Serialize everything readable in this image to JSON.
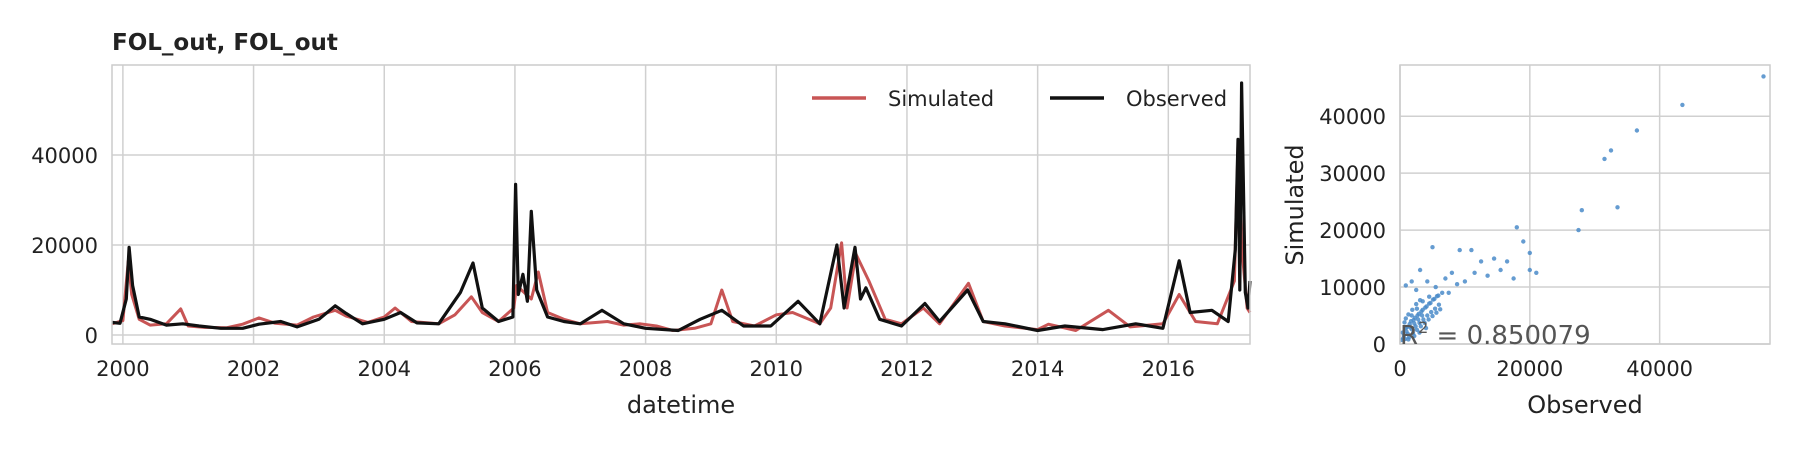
{
  "chart_data": [
    {
      "type": "line",
      "title": "FOL_out, FOL_out",
      "xlabel": "datetime",
      "ylabel": "",
      "xlim": [
        "1999-11-01",
        "2017-04-01"
      ],
      "ylim": [
        -2000,
        60000
      ],
      "x_ticks": [
        "2000",
        "2002",
        "2004",
        "2006",
        "2008",
        "2010",
        "2012",
        "2014",
        "2016"
      ],
      "y_ticks": [
        0,
        20000,
        40000
      ],
      "grid": true,
      "legend": "top-right",
      "colors": {
        "Simulated": "#c85555",
        "Observed": "#111111"
      },
      "series": [
        {
          "name": "Simulated",
          "points": [
            [
              "1999-11-01",
              2500
            ],
            [
              "2000-01-01",
              3200
            ],
            [
              "2000-02-01",
              16500
            ],
            [
              "2000-02-20",
              9000
            ],
            [
              "2000-04-01",
              3500
            ],
            [
              "2000-06-01",
              2200
            ],
            [
              "2000-09-01",
              2500
            ],
            [
              "2000-11-20",
              5800
            ],
            [
              "2001-01-01",
              2000
            ],
            [
              "2001-04-01",
              1700
            ],
            [
              "2001-08-01",
              1600
            ],
            [
              "2001-11-01",
              2400
            ],
            [
              "2002-02-01",
              3800
            ],
            [
              "2002-05-01",
              2600
            ],
            [
              "2002-09-01",
              2200
            ],
            [
              "2002-12-01",
              4000
            ],
            [
              "2003-04-01",
              5500
            ],
            [
              "2003-06-01",
              4200
            ],
            [
              "2003-10-01",
              2800
            ],
            [
              "2004-01-01",
              4000
            ],
            [
              "2004-03-01",
              6000
            ],
            [
              "2004-06-01",
              3000
            ],
            [
              "2004-11-01",
              2500
            ],
            [
              "2005-02-01",
              4500
            ],
            [
              "2005-05-01",
              8500
            ],
            [
              "2005-07-01",
              5000
            ],
            [
              "2005-10-01",
              3000
            ],
            [
              "2005-12-25",
              6000
            ],
            [
              "2006-01-10",
              11000
            ],
            [
              "2006-04-01",
              8000
            ],
            [
              "2006-05-10",
              14000
            ],
            [
              "2006-07-01",
              5000
            ],
            [
              "2006-10-01",
              3500
            ],
            [
              "2007-01-01",
              2500
            ],
            [
              "2007-06-01",
              3000
            ],
            [
              "2007-09-01",
              2200
            ],
            [
              "2007-12-01",
              2500
            ],
            [
              "2008-03-01",
              2000
            ],
            [
              "2008-06-01",
              1000
            ],
            [
              "2008-10-01",
              1500
            ],
            [
              "2009-01-01",
              2500
            ],
            [
              "2009-03-01",
              10000
            ],
            [
              "2009-05-01",
              3000
            ],
            [
              "2009-09-01",
              2000
            ],
            [
              "2010-01-01",
              4500
            ],
            [
              "2010-04-01",
              5000
            ],
            [
              "2010-09-01",
              2500
            ],
            [
              "2010-11-01",
              6000
            ],
            [
              "2011-01-01",
              20500
            ],
            [
              "2011-02-01",
              6000
            ],
            [
              "2011-03-20",
              18000
            ],
            [
              "2011-06-01",
              12000
            ],
            [
              "2011-09-01",
              3500
            ],
            [
              "2011-12-01",
              2500
            ],
            [
              "2012-04-01",
              6000
            ],
            [
              "2012-07-01",
              2500
            ],
            [
              "2012-12-10",
              11500
            ],
            [
              "2013-03-01",
              3000
            ],
            [
              "2013-07-01",
              2000
            ],
            [
              "2014-01-01",
              1200
            ],
            [
              "2014-03-01",
              2400
            ],
            [
              "2014-08-01",
              1000
            ],
            [
              "2015-02-01",
              5500
            ],
            [
              "2015-06-01",
              1800
            ],
            [
              "2015-12-01",
              2500
            ],
            [
              "2016-03-01",
              9000
            ],
            [
              "2016-06-01",
              3000
            ],
            [
              "2016-10-01",
              2500
            ],
            [
              "2017-01-05",
              12000
            ],
            [
              "2017-01-25",
              42000
            ],
            [
              "2017-02-15",
              20000
            ],
            [
              "2017-03-15",
              6000
            ],
            [
              "2017-04-01",
              5000
            ]
          ]
        },
        {
          "name": "Observed",
          "points": [
            [
              "1999-11-01",
              2800
            ],
            [
              "1999-12-15",
              2600
            ],
            [
              "2000-01-20",
              8000
            ],
            [
              "2000-02-05",
              19500
            ],
            [
              "2000-02-25",
              11000
            ],
            [
              "2000-04-01",
              4000
            ],
            [
              "2000-06-01",
              3500
            ],
            [
              "2000-09-01",
              2200
            ],
            [
              "2000-12-01",
              2500
            ],
            [
              "2001-03-01",
              2000
            ],
            [
              "2001-07-01",
              1500
            ],
            [
              "2001-11-01",
              1500
            ],
            [
              "2002-02-01",
              2400
            ],
            [
              "2002-06-01",
              3000
            ],
            [
              "2002-09-01",
              1800
            ],
            [
              "2003-01-01",
              3500
            ],
            [
              "2003-04-01",
              6500
            ],
            [
              "2003-06-01",
              4800
            ],
            [
              "2003-09-01",
              2500
            ],
            [
              "2004-01-01",
              3500
            ],
            [
              "2004-04-01",
              5000
            ],
            [
              "2004-07-01",
              2700
            ],
            [
              "2004-11-01",
              2500
            ],
            [
              "2005-03-01",
              9500
            ],
            [
              "2005-05-10",
              16000
            ],
            [
              "2005-07-01",
              6000
            ],
            [
              "2005-10-01",
              3000
            ],
            [
              "2005-12-20",
              4000
            ],
            [
              "2006-01-05",
              33500
            ],
            [
              "2006-01-20",
              9000
            ],
            [
              "2006-02-15",
              13500
            ],
            [
              "2006-03-10",
              7500
            ],
            [
              "2006-04-01",
              27500
            ],
            [
              "2006-05-01",
              10000
            ],
            [
              "2006-07-01",
              4000
            ],
            [
              "2006-10-01",
              3000
            ],
            [
              "2007-01-01",
              2500
            ],
            [
              "2007-05-01",
              5500
            ],
            [
              "2007-09-01",
              2500
            ],
            [
              "2008-01-01",
              1500
            ],
            [
              "2008-07-01",
              1000
            ],
            [
              "2008-11-01",
              3500
            ],
            [
              "2009-03-01",
              5500
            ],
            [
              "2009-07-01",
              2000
            ],
            [
              "2009-12-01",
              2000
            ],
            [
              "2010-05-01",
              7500
            ],
            [
              "2010-09-01",
              2500
            ],
            [
              "2010-12-05",
              20000
            ],
            [
              "2011-01-15",
              6000
            ],
            [
              "2011-03-15",
              19500
            ],
            [
              "2011-04-15",
              8000
            ],
            [
              "2011-05-15",
              10500
            ],
            [
              "2011-08-01",
              3500
            ],
            [
              "2011-12-01",
              2000
            ],
            [
              "2012-04-10",
              7000
            ],
            [
              "2012-07-01",
              3000
            ],
            [
              "2012-12-05",
              10000
            ],
            [
              "2013-03-01",
              3000
            ],
            [
              "2013-07-01",
              2500
            ],
            [
              "2014-01-01",
              1000
            ],
            [
              "2014-06-01",
              2000
            ],
            [
              "2015-01-01",
              1200
            ],
            [
              "2015-07-01",
              2500
            ],
            [
              "2015-12-01",
              1500
            ],
            [
              "2016-03-01",
              16500
            ],
            [
              "2016-05-01",
              5000
            ],
            [
              "2016-09-01",
              5500
            ],
            [
              "2016-12-01",
              3000
            ],
            [
              "2017-01-10",
              19000
            ],
            [
              "2017-01-25",
              43500
            ],
            [
              "2017-02-05",
              10000
            ],
            [
              "2017-02-15",
              56000
            ],
            [
              "2017-03-05",
              9500
            ],
            [
              "2017-03-20",
              6000
            ],
            [
              "2017-04-01",
              12000
            ]
          ]
        }
      ]
    },
    {
      "type": "scatter",
      "title": "",
      "xlabel": "Observed",
      "ylabel": "Simulated",
      "xlim": [
        0,
        57000
      ],
      "ylim": [
        0,
        49000
      ],
      "x_ticks": [
        0,
        20000,
        40000
      ],
      "y_ticks": [
        0,
        10000,
        20000,
        30000,
        40000
      ],
      "grid": true,
      "color": "#4a8bc9",
      "annotation": {
        "prefix": "R",
        "exponent": "2",
        "text": " = 0.850079"
      },
      "points": [
        [
          300,
          700
        ],
        [
          600,
          1500
        ],
        [
          900,
          2800
        ],
        [
          1200,
          1800
        ],
        [
          1500,
          3500
        ],
        [
          1800,
          2600
        ],
        [
          2100,
          4200
        ],
        [
          2400,
          3100
        ],
        [
          2700,
          5000
        ],
        [
          3000,
          3700
        ],
        [
          3300,
          5700
        ],
        [
          3600,
          4300
        ],
        [
          3900,
          6400
        ],
        [
          4200,
          5000
        ],
        [
          4500,
          7100
        ],
        [
          4800,
          5600
        ],
        [
          5100,
          7800
        ],
        [
          5400,
          6200
        ],
        [
          5700,
          8400
        ],
        [
          6000,
          6900
        ],
        [
          400,
          2000
        ],
        [
          800,
          900
        ],
        [
          1100,
          3000
        ],
        [
          1400,
          1200
        ],
        [
          1700,
          4000
        ],
        [
          2000,
          1900
        ],
        [
          2300,
          4600
        ],
        [
          2600,
          2500
        ],
        [
          2900,
          5300
        ],
        [
          3200,
          3100
        ],
        [
          3500,
          6000
        ],
        [
          3800,
          3700
        ],
        [
          4100,
          6600
        ],
        [
          4400,
          4300
        ],
        [
          4700,
          7200
        ],
        [
          5000,
          4900
        ],
        [
          5300,
          7900
        ],
        [
          5600,
          5500
        ],
        [
          5900,
          8500
        ],
        [
          6200,
          6100
        ],
        [
          700,
          3800
        ],
        [
          1000,
          2200
        ],
        [
          1300,
          5200
        ],
        [
          1600,
          2900
        ],
        [
          1900,
          6000
        ],
        [
          2200,
          3600
        ],
        [
          2500,
          7000
        ],
        [
          2800,
          4300
        ],
        [
          3100,
          7700
        ],
        [
          3400,
          5000
        ],
        [
          500,
          1000
        ],
        [
          900,
          4500
        ],
        [
          1300,
          800
        ],
        [
          1800,
          5000
        ],
        [
          2200,
          1400
        ],
        [
          2600,
          6200
        ],
        [
          3000,
          2000
        ],
        [
          3500,
          7500
        ],
        [
          4000,
          2800
        ],
        [
          4500,
          8300
        ],
        [
          900,
          10300
        ],
        [
          1800,
          11000
        ],
        [
          2500,
          9500
        ],
        [
          3100,
          13000
        ],
        [
          4200,
          11000
        ],
        [
          5000,
          17000
        ],
        [
          5500,
          10000
        ],
        [
          6500,
          9000
        ],
        [
          7000,
          11500
        ],
        [
          7500,
          9000
        ],
        [
          8000,
          12500
        ],
        [
          8800,
          10500
        ],
        [
          9200,
          16500
        ],
        [
          10000,
          11000
        ],
        [
          11000,
          16500
        ],
        [
          11500,
          12500
        ],
        [
          12500,
          14500
        ],
        [
          13500,
          12000
        ],
        [
          14500,
          15000
        ],
        [
          15500,
          13000
        ],
        [
          16500,
          14500
        ],
        [
          17500,
          11500
        ],
        [
          18000,
          20500
        ],
        [
          19000,
          18000
        ],
        [
          20000,
          16000
        ],
        [
          20000,
          13000
        ],
        [
          21000,
          12500
        ],
        [
          27500,
          20000
        ],
        [
          28000,
          23500
        ],
        [
          31500,
          32500
        ],
        [
          32500,
          34000
        ],
        [
          33500,
          24000
        ],
        [
          36500,
          37500
        ],
        [
          43500,
          42000
        ],
        [
          56000,
          47000
        ]
      ]
    }
  ]
}
